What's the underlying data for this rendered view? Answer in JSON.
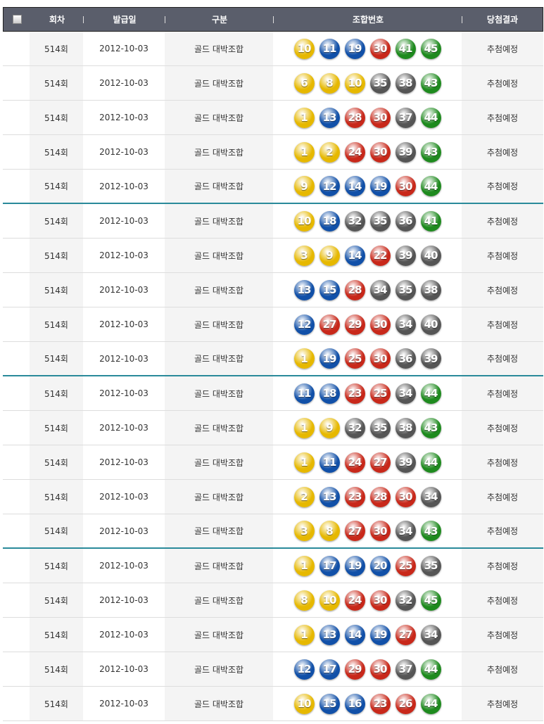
{
  "header": {
    "round": "회차",
    "date": "발급일",
    "type": "구분",
    "numbers": "조합번호",
    "result": "당첨결과"
  },
  "ball_colors": {
    "1-10": "#e6b800",
    "11-20": "#1150a8",
    "21-30": "#c8281a",
    "31-40": "#555555",
    "41-45": "#1e8a1e"
  },
  "rows": [
    {
      "round": "514회",
      "date": "2012-10-03",
      "type": "골드 대박조합",
      "numbers": [
        10,
        11,
        19,
        30,
        41,
        45
      ],
      "result": "추첨예정"
    },
    {
      "round": "514회",
      "date": "2012-10-03",
      "type": "골드 대박조합",
      "numbers": [
        6,
        8,
        10,
        35,
        38,
        43
      ],
      "result": "추첨예정"
    },
    {
      "round": "514회",
      "date": "2012-10-03",
      "type": "골드 대박조합",
      "numbers": [
        1,
        13,
        28,
        30,
        37,
        44
      ],
      "result": "추첨예정"
    },
    {
      "round": "514회",
      "date": "2012-10-03",
      "type": "골드 대박조합",
      "numbers": [
        1,
        2,
        24,
        30,
        39,
        43
      ],
      "result": "추첨예정"
    },
    {
      "round": "514회",
      "date": "2012-10-03",
      "type": "골드 대박조합",
      "numbers": [
        9,
        12,
        14,
        19,
        30,
        44
      ],
      "result": "추첨예정"
    },
    {
      "round": "514회",
      "date": "2012-10-03",
      "type": "골드 대박조합",
      "numbers": [
        10,
        18,
        32,
        35,
        36,
        41
      ],
      "result": "추첨예정"
    },
    {
      "round": "514회",
      "date": "2012-10-03",
      "type": "골드 대박조합",
      "numbers": [
        3,
        9,
        14,
        22,
        39,
        40
      ],
      "result": "추첨예정"
    },
    {
      "round": "514회",
      "date": "2012-10-03",
      "type": "골드 대박조합",
      "numbers": [
        13,
        15,
        28,
        34,
        35,
        38
      ],
      "result": "추첨예정"
    },
    {
      "round": "514회",
      "date": "2012-10-03",
      "type": "골드 대박조합",
      "numbers": [
        12,
        27,
        29,
        30,
        34,
        40
      ],
      "result": "추첨예정"
    },
    {
      "round": "514회",
      "date": "2012-10-03",
      "type": "골드 대박조합",
      "numbers": [
        1,
        19,
        25,
        30,
        36,
        39
      ],
      "result": "추첨예정"
    },
    {
      "round": "514회",
      "date": "2012-10-03",
      "type": "골드 대박조합",
      "numbers": [
        11,
        18,
        23,
        25,
        34,
        44
      ],
      "result": "추첨예정"
    },
    {
      "round": "514회",
      "date": "2012-10-03",
      "type": "골드 대박조합",
      "numbers": [
        1,
        9,
        32,
        35,
        38,
        43
      ],
      "result": "추첨예정"
    },
    {
      "round": "514회",
      "date": "2012-10-03",
      "type": "골드 대박조합",
      "numbers": [
        1,
        11,
        24,
        27,
        39,
        44
      ],
      "result": "추첨예정"
    },
    {
      "round": "514회",
      "date": "2012-10-03",
      "type": "골드 대박조합",
      "numbers": [
        2,
        13,
        23,
        28,
        30,
        34
      ],
      "result": "추첨예정"
    },
    {
      "round": "514회",
      "date": "2012-10-03",
      "type": "골드 대박조합",
      "numbers": [
        3,
        8,
        27,
        30,
        34,
        43
      ],
      "result": "추첨예정"
    },
    {
      "round": "514회",
      "date": "2012-10-03",
      "type": "골드 대박조합",
      "numbers": [
        1,
        17,
        19,
        20,
        25,
        35
      ],
      "result": "추첨예정"
    },
    {
      "round": "514회",
      "date": "2012-10-03",
      "type": "골드 대박조합",
      "numbers": [
        8,
        10,
        24,
        30,
        32,
        45
      ],
      "result": "추첨예정"
    },
    {
      "round": "514회",
      "date": "2012-10-03",
      "type": "골드 대박조합",
      "numbers": [
        1,
        13,
        14,
        19,
        27,
        34
      ],
      "result": "추첨예정"
    },
    {
      "round": "514회",
      "date": "2012-10-03",
      "type": "골드 대박조합",
      "numbers": [
        12,
        17,
        29,
        30,
        37,
        44
      ],
      "result": "추첨예정"
    },
    {
      "round": "514회",
      "date": "2012-10-03",
      "type": "골드 대박조합",
      "numbers": [
        10,
        15,
        16,
        23,
        26,
        44
      ],
      "result": "추첨예정"
    }
  ]
}
